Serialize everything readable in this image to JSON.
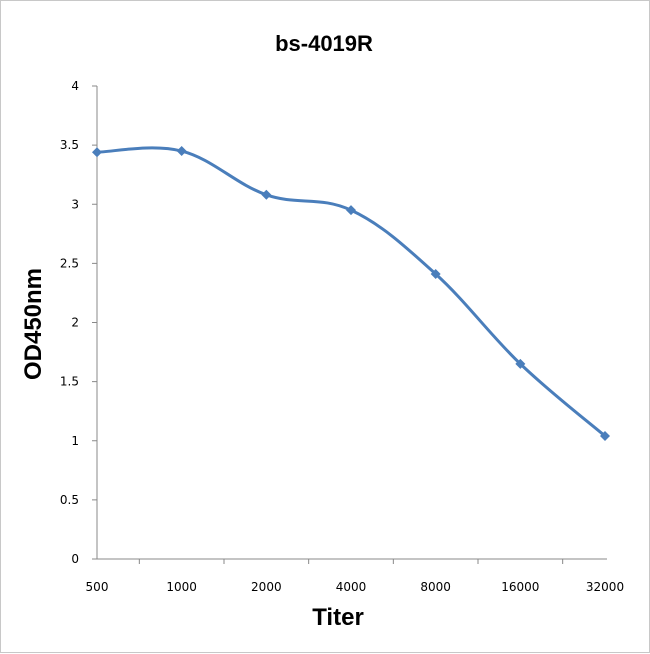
{
  "chart_data": {
    "type": "line",
    "title": "bs-4019R",
    "xlabel": "Titer",
    "ylabel": "OD450nm",
    "categories": [
      "500",
      "1000",
      "2000",
      "4000",
      "8000",
      "16000",
      "32000"
    ],
    "series": [
      {
        "values": [
          3.44,
          3.45,
          3.08,
          2.95,
          2.41,
          1.65,
          1.04
        ]
      }
    ],
    "ylim": [
      0,
      4
    ],
    "yticks": [
      "0",
      "0.5",
      "1",
      "1.5",
      "2",
      "2.5",
      "3",
      "3.5",
      "4"
    ],
    "grid": false,
    "legend": "none",
    "colors": {
      "line": "#4a7ebb",
      "axis": "#888888"
    }
  }
}
